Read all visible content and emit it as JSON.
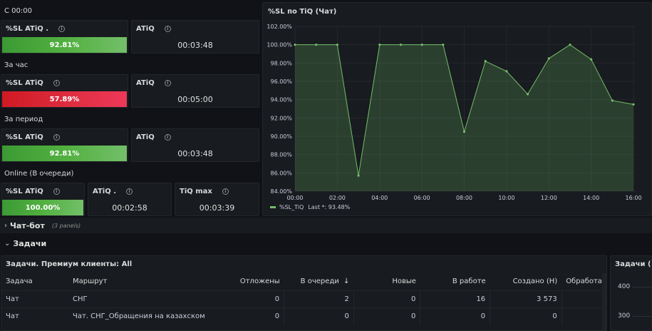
{
  "left": {
    "section_since_midnight": "С 00:00",
    "section_hour": "За час",
    "section_period": "За период",
    "section_online": "Online (В очереди)",
    "row1": {
      "sl_title": "%SL ATiQ .",
      "sl_value": "92.81%",
      "sl_fraction": 0.9281,
      "atiq_title": "ATiQ",
      "atiq_value": "00:03:48"
    },
    "row2": {
      "sl_title": "%SL ATiQ",
      "sl_value": "57.89%",
      "sl_fraction": 0.5789,
      "atiq_title": "ATiQ",
      "atiq_value": "00:05:00"
    },
    "row3": {
      "sl_title": "%SL ATiQ",
      "sl_value": "92.81%",
      "sl_fraction": 0.9281,
      "atiq_title": "ATiQ",
      "atiq_value": "00:03:48"
    },
    "row4": {
      "sl_title": "%SL ATiQ",
      "sl_value": "100.00%",
      "sl_fraction": 1.0,
      "atiq_title": "ATiQ .",
      "atiq_value": "00:02:58",
      "tiqmax_title": "TiQ max",
      "tiqmax_value": "00:03:39"
    }
  },
  "colors": {
    "green": "#73bf69",
    "red": "#e02f44",
    "panel_bg": "#181b1f",
    "page_bg": "#111217"
  },
  "chart_panel": {
    "title": "%SL по TiQ (Чат)",
    "legend_label": "%SL_TiQ",
    "legend_last": "Last *: 93.48%"
  },
  "chart_data": {
    "type": "area",
    "yticks": [
      "84.00%",
      "86.00%",
      "88.00%",
      "90.00%",
      "92.00%",
      "94.00%",
      "96.00%",
      "98.00%",
      "100.00%",
      "102.00%"
    ],
    "xticks": [
      "00:00",
      "02:00",
      "04:00",
      "06:00",
      "08:00",
      "10:00",
      "12:00",
      "14:00",
      "16:00"
    ],
    "ylim": [
      84,
      102
    ],
    "xlim": [
      0,
      16.1
    ],
    "series": [
      {
        "name": "%SL_TiQ",
        "color": "#73bf69",
        "points": [
          [
            0,
            100
          ],
          [
            1,
            100
          ],
          [
            2,
            100
          ],
          [
            3,
            85.7
          ],
          [
            4,
            100
          ],
          [
            5,
            100
          ],
          [
            6,
            100
          ],
          [
            7,
            100
          ],
          [
            8,
            90.5
          ],
          [
            9,
            98.2
          ],
          [
            10,
            97.1
          ],
          [
            11,
            94.6
          ],
          [
            12,
            98.5
          ],
          [
            13,
            100
          ],
          [
            14,
            98.4
          ],
          [
            15,
            93.9
          ],
          [
            16,
            93.48
          ]
        ]
      }
    ]
  },
  "sections": {
    "chatbot": {
      "chevron": "›",
      "name": "Чат-бот",
      "count": "(3 panels)"
    },
    "tasks": {
      "chevron": "⌄",
      "name": "Задачи"
    }
  },
  "tasks_table": {
    "title": "Задачи. Премиум клиенты: All",
    "columns": [
      "Задача",
      "Маршрут",
      "Отложены",
      "В очереди",
      "Новые",
      "В работе",
      "Создано (Н)",
      "Обработа"
    ],
    "sort_icon": "↓",
    "rows": [
      [
        "Чат",
        "СНГ",
        "0",
        "2",
        "0",
        "16",
        "3 573",
        ""
      ],
      [
        "Чат",
        "Чат. СНГ_Обращения на казахском",
        "0",
        "0",
        "0",
        "0",
        "0",
        ""
      ]
    ]
  },
  "side_panel": {
    "title": "Задачи (Ча",
    "ticks": [
      "400",
      "300"
    ]
  }
}
